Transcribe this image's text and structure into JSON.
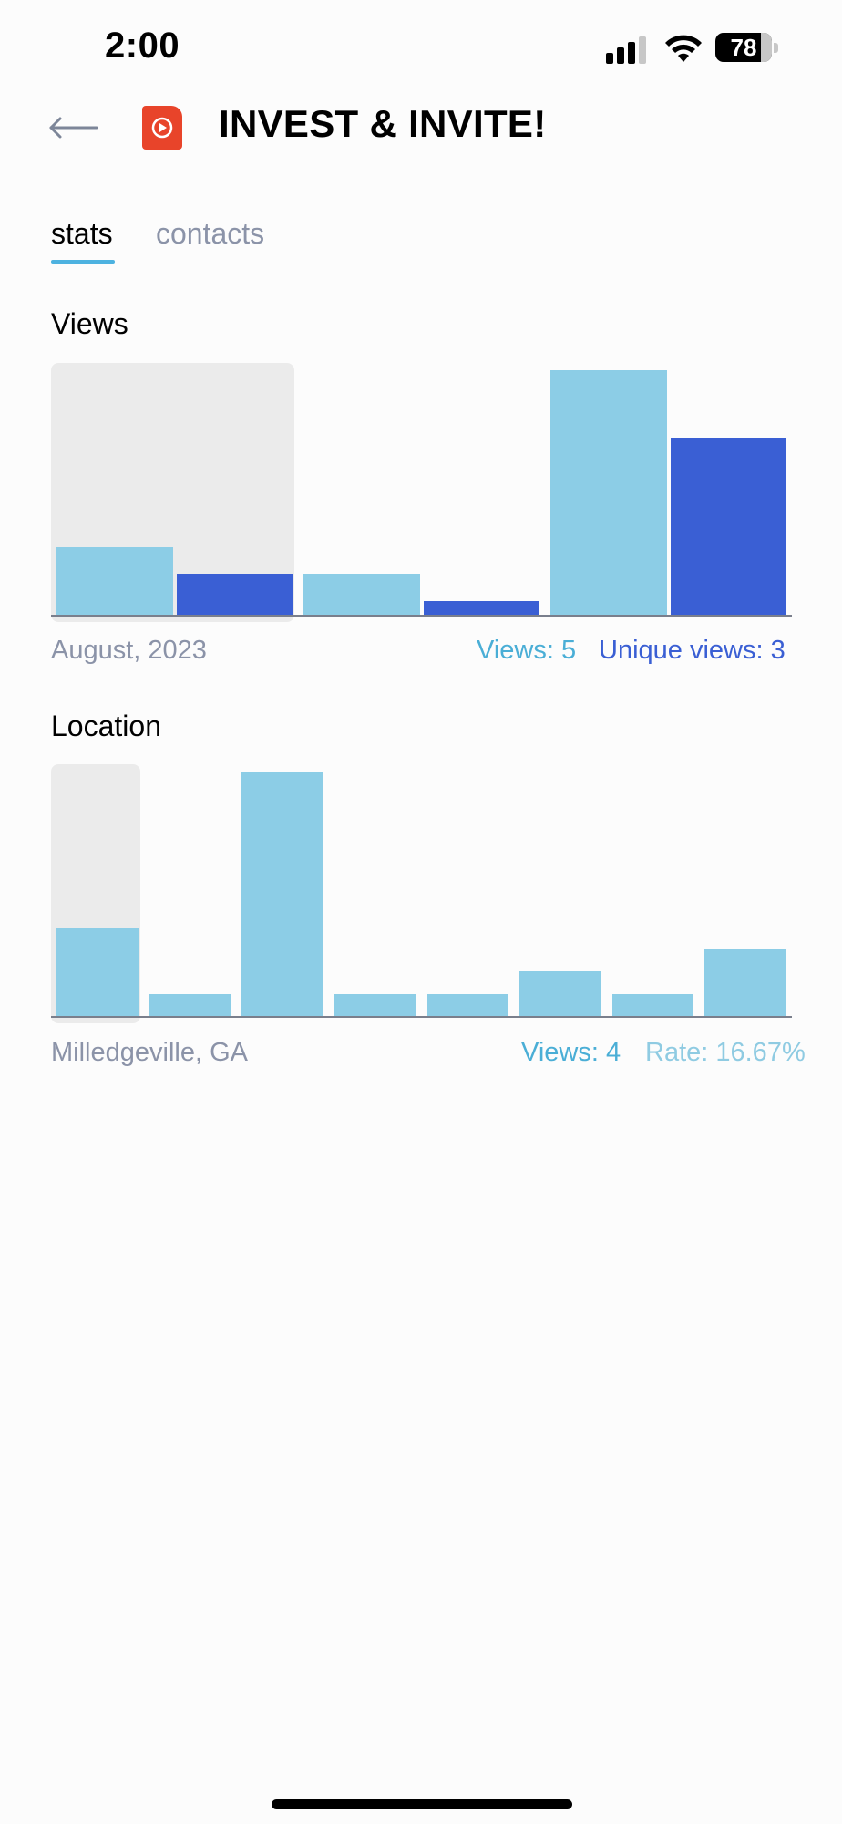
{
  "status_bar": {
    "time": "2:00",
    "battery": "78"
  },
  "header": {
    "title": "INVEST & INVITE!",
    "back_icon": "arrow-left-icon",
    "app_icon": "play-video-icon"
  },
  "tabs": [
    {
      "label": "stats",
      "active": true
    },
    {
      "label": "contacts",
      "active": false
    }
  ],
  "views_section": {
    "title": "Views",
    "selected_label": "August, 2023",
    "views_text": "Views: 5",
    "unique_text": "Unique views: 3"
  },
  "location_section": {
    "title": "Location",
    "selected_label": "Milledgeville, GA",
    "views_text": "Views: 4",
    "rate_text": "Rate: 16.67%"
  },
  "colors": {
    "views": "#8ccde6",
    "unique_views": "#3a5fd4",
    "highlight": "#ebebeb",
    "accent": "#4db2e0",
    "app_icon": "#e8442a"
  },
  "chart_data": [
    {
      "type": "bar",
      "title": "Views",
      "categories": [
        "August, 2023",
        "",
        ""
      ],
      "series": [
        {
          "name": "Views",
          "values": [
            5,
            3,
            18
          ]
        },
        {
          "name": "Unique views",
          "values": [
            3,
            1,
            13
          ]
        }
      ],
      "selected_index": 0,
      "ylim": [
        0,
        18
      ]
    },
    {
      "type": "bar",
      "title": "Location",
      "categories": [
        "Milledgeville, GA",
        "",
        "",
        "",
        "",
        "",
        "",
        ""
      ],
      "series": [
        {
          "name": "Views",
          "values": [
            4,
            1,
            11,
            1,
            1,
            2,
            1,
            3
          ]
        }
      ],
      "selected_index": 0,
      "ylim": [
        0,
        11
      ]
    }
  ]
}
